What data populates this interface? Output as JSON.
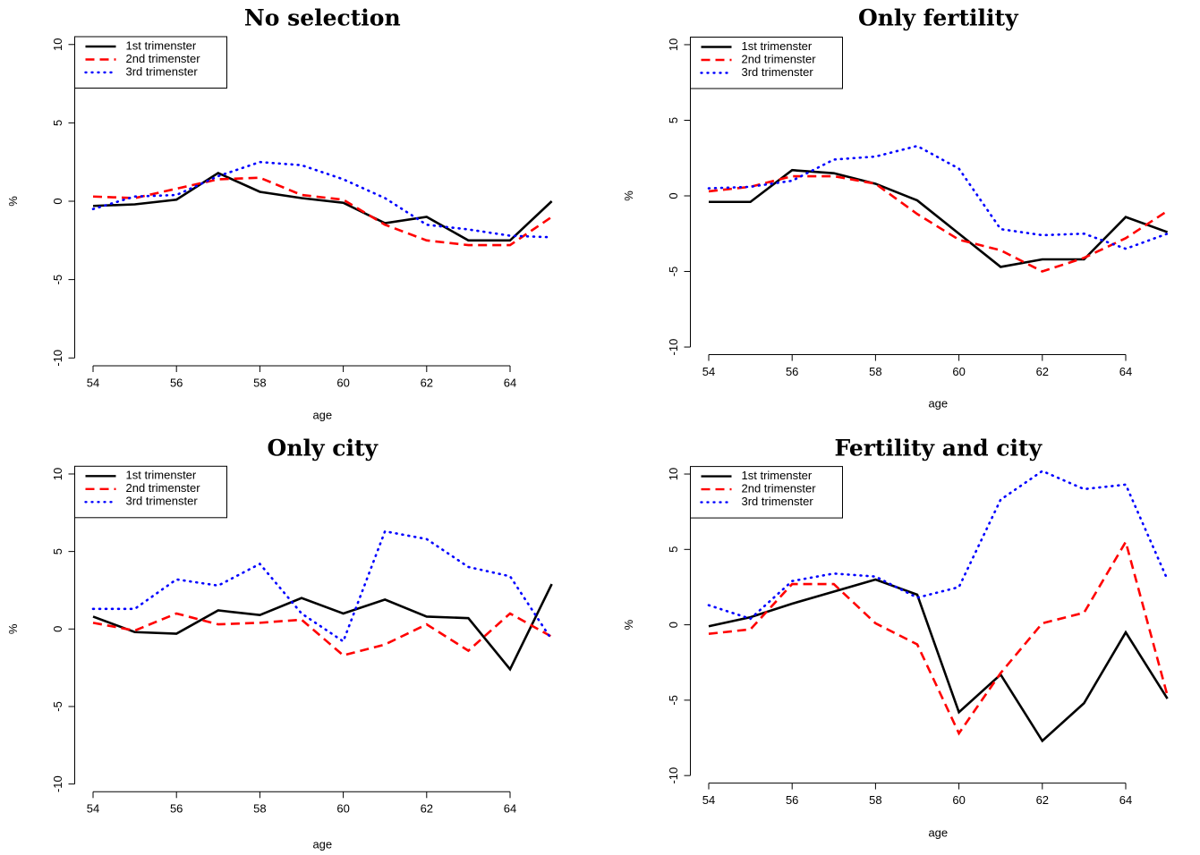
{
  "chart_data": [
    {
      "type": "line",
      "title": "No selection",
      "x_label": "age",
      "y_label": "%",
      "x": [
        54,
        55,
        56,
        57,
        58,
        59,
        60,
        61,
        62,
        63,
        64,
        65
      ],
      "xlim": [
        53.56,
        65.44
      ],
      "xticks": [
        54,
        56,
        58,
        60,
        62,
        64
      ],
      "ylim": [
        -10.5,
        10.5
      ],
      "yticks": [
        -10,
        -5,
        0,
        5,
        10
      ],
      "legend": "top-left",
      "series": [
        {
          "name": "1st trimenster",
          "color": "#000000",
          "linestyle": "solid",
          "values": [
            -0.3,
            -0.2,
            0.1,
            1.8,
            0.6,
            0.2,
            -0.1,
            -1.4,
            -1.0,
            -2.5,
            -2.5,
            0
          ]
        },
        {
          "name": "2nd trimenster",
          "color": "#ff0000",
          "linestyle": "dashed",
          "values": [
            0.3,
            0.2,
            0.8,
            1.4,
            1.5,
            0.4,
            0.1,
            -1.5,
            -2.5,
            -2.8,
            -2.8,
            -1.0
          ]
        },
        {
          "name": "3rd trimenster",
          "color": "#0000ff",
          "linestyle": "dotted",
          "values": [
            -0.5,
            0.3,
            0.4,
            1.6,
            2.5,
            2.3,
            1.4,
            0.2,
            -1.5,
            -1.8,
            -2.2,
            -2.3
          ]
        }
      ]
    },
    {
      "type": "line",
      "title": "Only fertility",
      "x_label": "age",
      "y_label": "%",
      "x": [
        54,
        55,
        56,
        57,
        58,
        59,
        60,
        61,
        62,
        63,
        64,
        65
      ],
      "xlim": [
        53.56,
        65.44
      ],
      "xticks": [
        54,
        56,
        58,
        60,
        62,
        64
      ],
      "ylim": [
        -10.5,
        10.5
      ],
      "yticks": [
        -10,
        -5,
        0,
        5,
        10
      ],
      "legend": "top-left",
      "series": [
        {
          "name": "1st trimenster",
          "color": "#000000",
          "linestyle": "solid",
          "values": [
            -0.4,
            -0.4,
            1.7,
            1.5,
            0.8,
            -0.3,
            -2.5,
            -4.7,
            -4.2,
            -4.2,
            -1.4,
            -2.4
          ]
        },
        {
          "name": "2nd trimenster",
          "color": "#ff0000",
          "linestyle": "dashed",
          "values": [
            0.3,
            0.6,
            1.3,
            1.3,
            0.8,
            -1.2,
            -2.9,
            -3.6,
            -5.0,
            -4.1,
            -2.8,
            -1.0
          ]
        },
        {
          "name": "3rd trimenster",
          "color": "#0000ff",
          "linestyle": "dotted",
          "values": [
            0.5,
            0.6,
            1.0,
            2.4,
            2.6,
            3.3,
            1.8,
            -2.2,
            -2.6,
            -2.5,
            -3.5,
            -2.5
          ]
        }
      ]
    },
    {
      "type": "line",
      "title": "Only city",
      "x_label": "age",
      "y_label": "%",
      "x": [
        54,
        55,
        56,
        57,
        58,
        59,
        60,
        61,
        62,
        63,
        64,
        65
      ],
      "xlim": [
        53.56,
        65.44
      ],
      "xticks": [
        54,
        56,
        58,
        60,
        62,
        64
      ],
      "ylim": [
        -10.5,
        10.5
      ],
      "yticks": [
        -10,
        -5,
        0,
        5,
        10
      ],
      "legend": "top-left",
      "series": [
        {
          "name": "1st trimenster",
          "color": "#000000",
          "linestyle": "solid",
          "values": [
            0.8,
            -0.2,
            -0.3,
            1.2,
            0.9,
            2.0,
            1.0,
            1.9,
            0.8,
            0.7,
            -2.6,
            2.9
          ]
        },
        {
          "name": "2nd trimenster",
          "color": "#ff0000",
          "linestyle": "dashed",
          "values": [
            0.4,
            -0.1,
            1.0,
            0.3,
            0.4,
            0.6,
            -1.7,
            -1.0,
            0.3,
            -1.4,
            1.0,
            -0.5
          ]
        },
        {
          "name": "3rd trimenster",
          "color": "#0000ff",
          "linestyle": "dotted",
          "values": [
            1.3,
            1.3,
            3.2,
            2.8,
            4.2,
            1.0,
            -0.8,
            6.3,
            5.8,
            4.0,
            3.4,
            -0.7
          ]
        }
      ]
    },
    {
      "type": "line",
      "title": "Fertility and city",
      "x_label": "age",
      "y_label": "%",
      "x": [
        54,
        55,
        56,
        57,
        58,
        59,
        60,
        61,
        62,
        63,
        64,
        65
      ],
      "xlim": [
        53.56,
        65.44
      ],
      "xticks": [
        54,
        56,
        58,
        60,
        62,
        64
      ],
      "ylim": [
        -10.5,
        10.5
      ],
      "yticks": [
        -10,
        -5,
        0,
        5,
        10
      ],
      "legend": "top-left",
      "series": [
        {
          "name": "1st trimenster",
          "color": "#000000",
          "linestyle": "solid",
          "values": [
            -0.1,
            0.5,
            1.4,
            2.2,
            3.0,
            2.0,
            -5.8,
            -3.3,
            -7.7,
            -5.2,
            -0.5,
            -4.9
          ]
        },
        {
          "name": "2nd trimenster",
          "color": "#ff0000",
          "linestyle": "dashed",
          "values": [
            -0.6,
            -0.3,
            2.7,
            2.7,
            0.1,
            -1.3,
            -7.2,
            -3.2,
            0.1,
            0.8,
            5.5,
            -4.7
          ]
        },
        {
          "name": "3rd trimenster",
          "color": "#0000ff",
          "linestyle": "dotted",
          "values": [
            1.3,
            0.4,
            2.9,
            3.4,
            3.2,
            1.8,
            2.5,
            8.3,
            10.2,
            9.0,
            9.3,
            3.0
          ]
        }
      ]
    }
  ]
}
